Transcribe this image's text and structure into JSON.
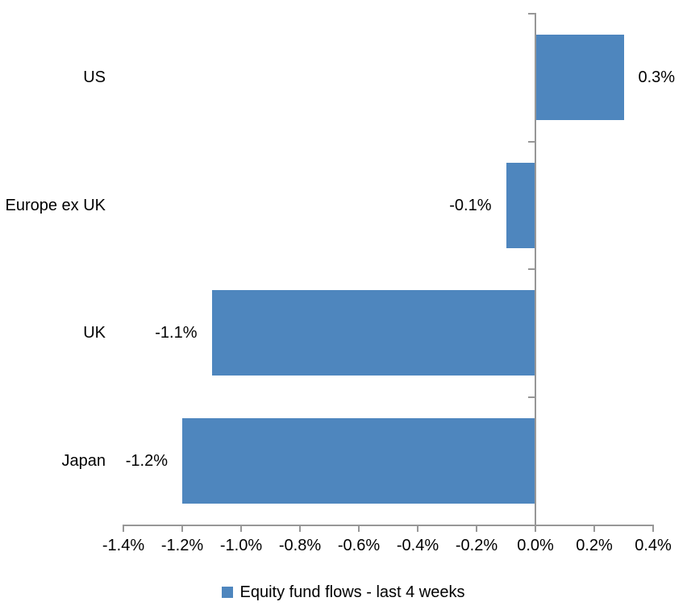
{
  "chart_data": {
    "type": "bar",
    "orientation": "horizontal",
    "categories": [
      "US",
      "Europe ex UK",
      "UK",
      "Japan"
    ],
    "values": [
      0.3,
      -0.1,
      -1.1,
      -1.2
    ],
    "value_labels": [
      "0.3%",
      "-0.1%",
      "-1.1%",
      "-1.2%"
    ],
    "x_ticks": [
      -1.4,
      -1.2,
      -1.0,
      -0.8,
      -0.6,
      -0.4,
      -0.2,
      0.0,
      0.2,
      0.4
    ],
    "x_tick_labels": [
      "-1.4%",
      "-1.2%",
      "-1.0%",
      "-0.8%",
      "-0.6%",
      "-0.4%",
      "-0.2%",
      "0.0%",
      "0.2%",
      "0.4%"
    ],
    "xlim": [
      -1.4,
      0.4
    ],
    "grid": false,
    "title": "",
    "xlabel": "",
    "ylabel": "",
    "legend": {
      "position": "bottom",
      "label": "Equity fund flows - last 4 weeks"
    },
    "colors": {
      "bar": "#4E86BE",
      "axis": "#979797",
      "text": "#000000",
      "background": "#FFFFFF"
    }
  }
}
